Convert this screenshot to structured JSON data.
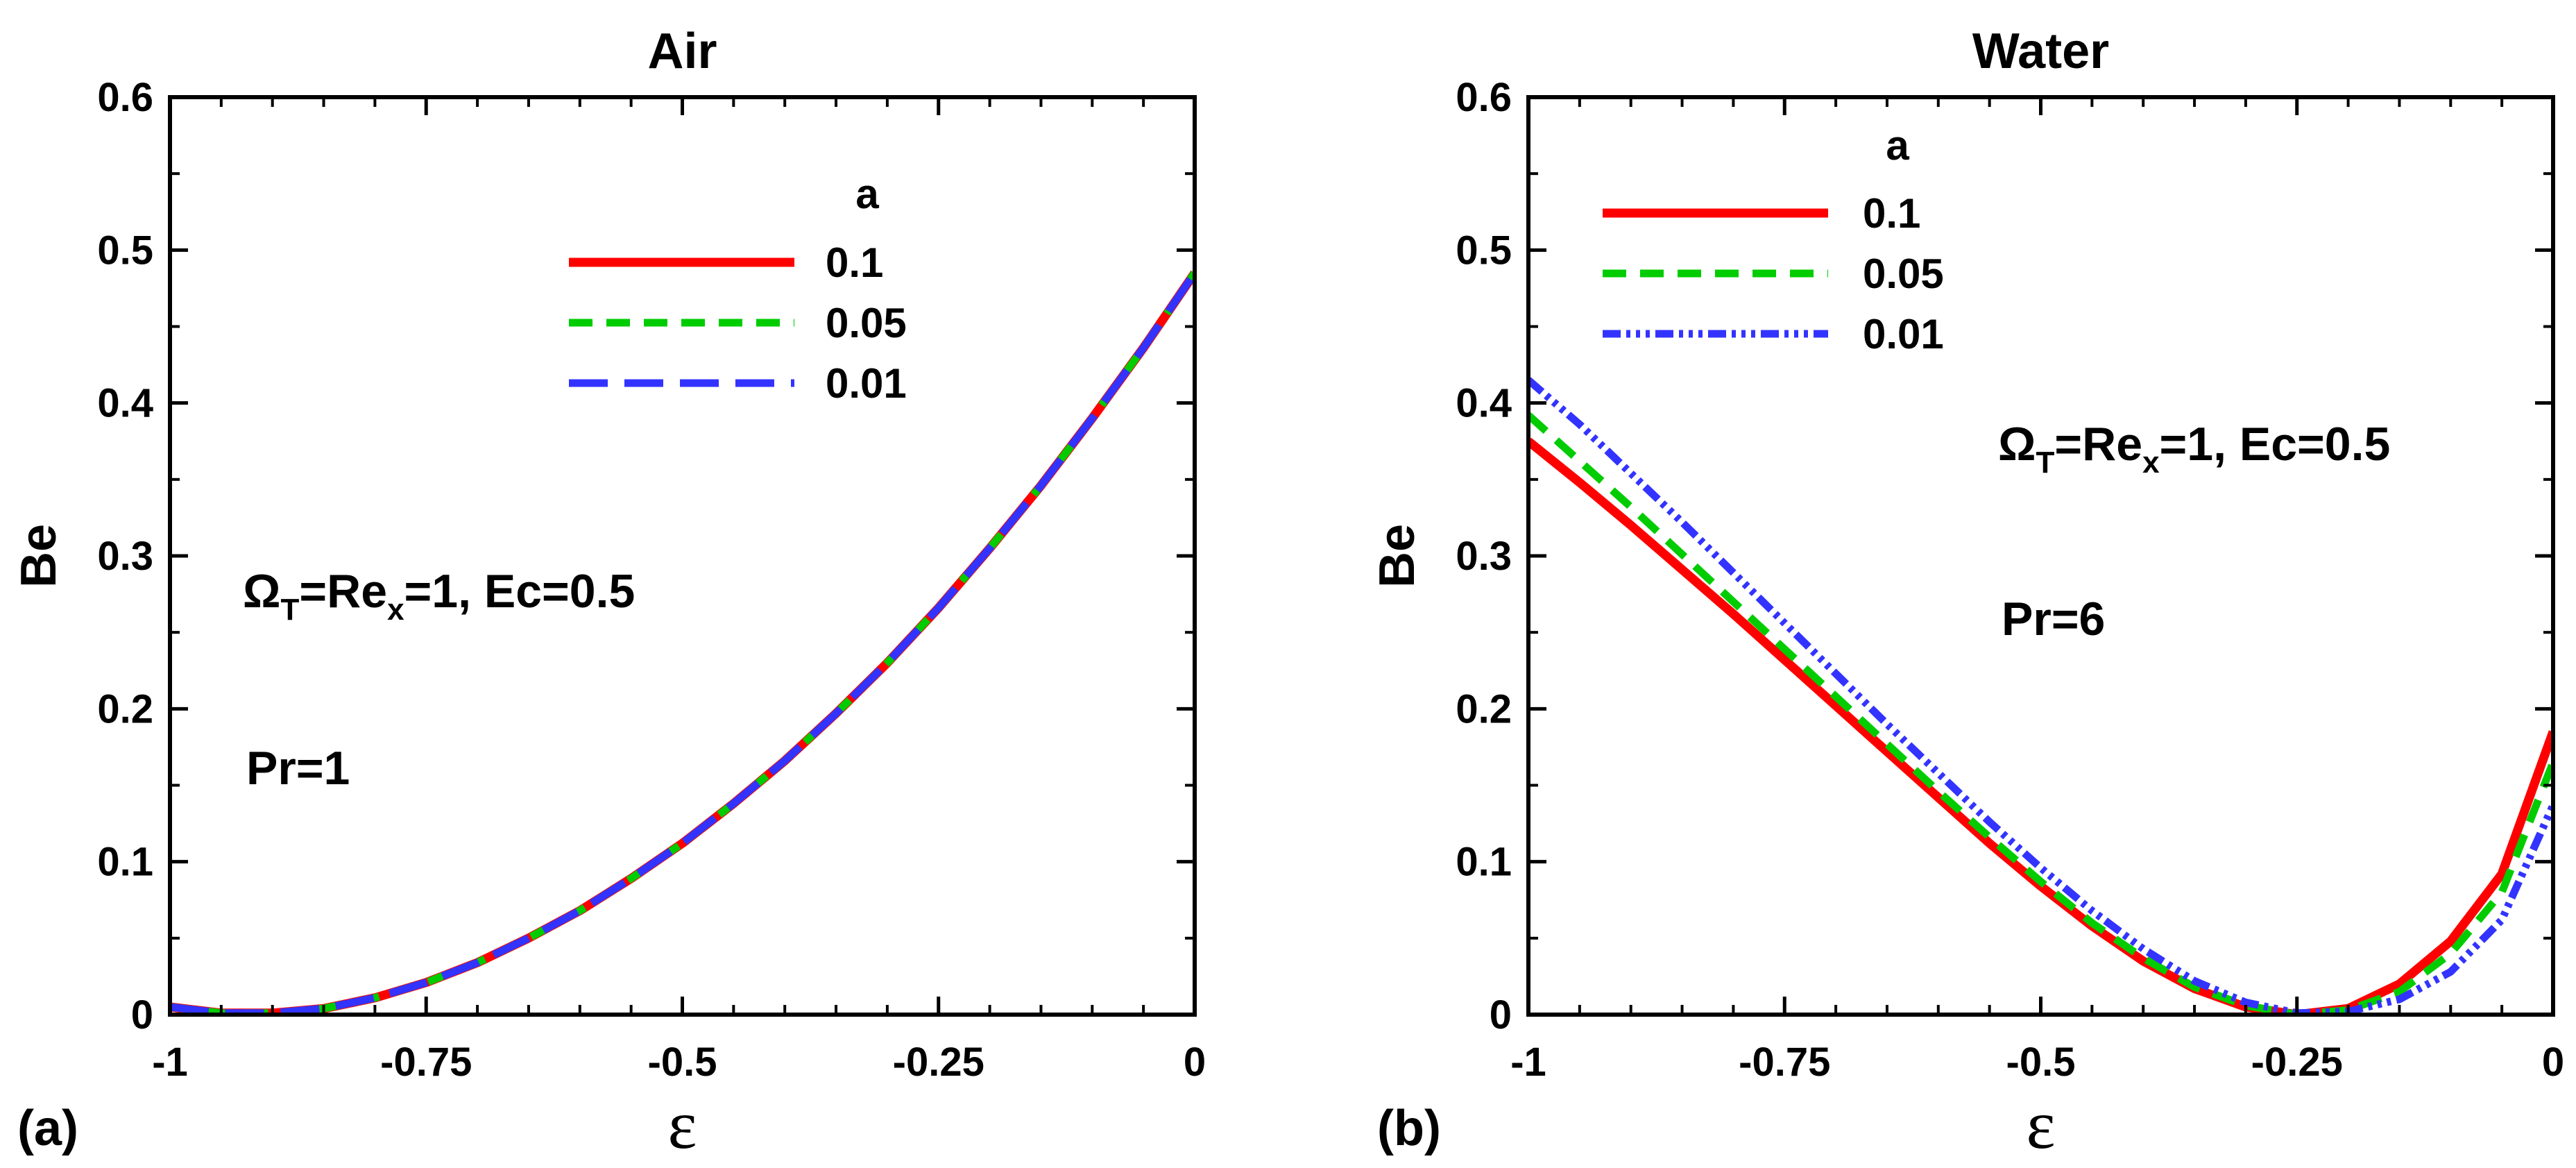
{
  "chart_data": [
    {
      "type": "line",
      "panel_label": "(a)",
      "title": "Air",
      "xlabel": "ε",
      "ylabel": "Be",
      "xlim": [
        -1,
        0
      ],
      "ylim": [
        0,
        0.6
      ],
      "x_ticks": [
        "-1",
        "-0.75",
        "-0.5",
        "-0.25",
        "0"
      ],
      "y_ticks": [
        "0",
        "0.1",
        "0.2",
        "0.3",
        "0.4",
        "0.5",
        "0.6"
      ],
      "legend_title": "a",
      "legend_position": "top-center",
      "annotation_lines": [
        {
          "parts": [
            {
              "t": "Ω"
            },
            {
              "t": "T",
              "sub": true
            },
            {
              "t": "=Re"
            },
            {
              "t": "x",
              "sub": true
            },
            {
              "t": "=1, Ec=0.5"
            }
          ]
        },
        {
          "parts": [
            {
              "t": "Pr=1"
            }
          ]
        }
      ],
      "x": [
        -1,
        -0.95,
        -0.9,
        -0.85,
        -0.8,
        -0.75,
        -0.7,
        -0.65,
        -0.6,
        -0.55,
        -0.5,
        -0.45,
        -0.4,
        -0.35,
        -0.3,
        -0.25,
        -0.2,
        -0.15,
        -0.1,
        -0.05,
        0
      ],
      "series": [
        {
          "name": "0.1",
          "color": "#ff0000",
          "style": "solid",
          "values": [
            0.005,
            0.001,
            0.001,
            0.004,
            0.011,
            0.021,
            0.034,
            0.05,
            0.068,
            0.089,
            0.112,
            0.138,
            0.166,
            0.197,
            0.23,
            0.266,
            0.305,
            0.346,
            0.39,
            0.436,
            0.485
          ]
        },
        {
          "name": "0.05",
          "color": "#00cc00",
          "style": "dash",
          "values": [
            0.005,
            0.001,
            0.001,
            0.004,
            0.011,
            0.021,
            0.034,
            0.05,
            0.068,
            0.089,
            0.112,
            0.138,
            0.166,
            0.197,
            0.23,
            0.266,
            0.305,
            0.346,
            0.39,
            0.436,
            0.485
          ]
        },
        {
          "name": "0.01",
          "color": "#3333ff",
          "style": "longdash",
          "values": [
            0.005,
            0.001,
            0.001,
            0.004,
            0.011,
            0.021,
            0.034,
            0.05,
            0.068,
            0.089,
            0.112,
            0.138,
            0.166,
            0.197,
            0.23,
            0.266,
            0.305,
            0.346,
            0.39,
            0.436,
            0.485
          ]
        }
      ]
    },
    {
      "type": "line",
      "panel_label": "(b)",
      "title": "Water",
      "xlabel": "ε",
      "ylabel": "Be",
      "xlim": [
        -1,
        0
      ],
      "ylim": [
        0,
        0.6
      ],
      "x_ticks": [
        "-1",
        "-0.75",
        "-0.5",
        "-0.25",
        "0"
      ],
      "y_ticks": [
        "0",
        "0.1",
        "0.2",
        "0.3",
        "0.4",
        "0.5",
        "0.6"
      ],
      "legend_title": "a",
      "legend_position": "top-left",
      "annotation_lines": [
        {
          "parts": [
            {
              "t": "Ω"
            },
            {
              "t": "T",
              "sub": true
            },
            {
              "t": "=Re"
            },
            {
              "t": "x",
              "sub": true
            },
            {
              "t": "=1, Ec=0.5"
            }
          ]
        },
        {
          "parts": [
            {
              "t": "Pr=6"
            }
          ]
        }
      ],
      "x": [
        -1,
        -0.95,
        -0.9,
        -0.85,
        -0.8,
        -0.75,
        -0.7,
        -0.65,
        -0.6,
        -0.55,
        -0.5,
        -0.45,
        -0.4,
        -0.35,
        -0.3,
        -0.25,
        -0.2,
        -0.15,
        -0.1,
        -0.05,
        0
      ],
      "series": [
        {
          "name": "0.1",
          "color": "#ff0000",
          "style": "solid",
          "values": [
            0.375,
            0.348,
            0.32,
            0.291,
            0.262,
            0.232,
            0.202,
            0.172,
            0.142,
            0.112,
            0.084,
            0.058,
            0.035,
            0.017,
            0.005,
            0.0,
            0.004,
            0.02,
            0.048,
            0.092,
            0.185
          ]
        },
        {
          "name": "0.05",
          "color": "#00cc00",
          "style": "dash",
          "values": [
            0.392,
            0.362,
            0.332,
            0.301,
            0.27,
            0.239,
            0.208,
            0.177,
            0.146,
            0.116,
            0.087,
            0.06,
            0.037,
            0.018,
            0.006,
            0.0,
            0.003,
            0.015,
            0.04,
            0.08,
            0.165
          ]
        },
        {
          "name": "0.01",
          "color": "#3333ff",
          "style": "dashdot",
          "values": [
            0.415,
            0.386,
            0.354,
            0.322,
            0.289,
            0.256,
            0.223,
            0.19,
            0.158,
            0.126,
            0.096,
            0.068,
            0.043,
            0.022,
            0.008,
            0.001,
            0.002,
            0.01,
            0.028,
            0.062,
            0.137
          ]
        }
      ]
    }
  ]
}
